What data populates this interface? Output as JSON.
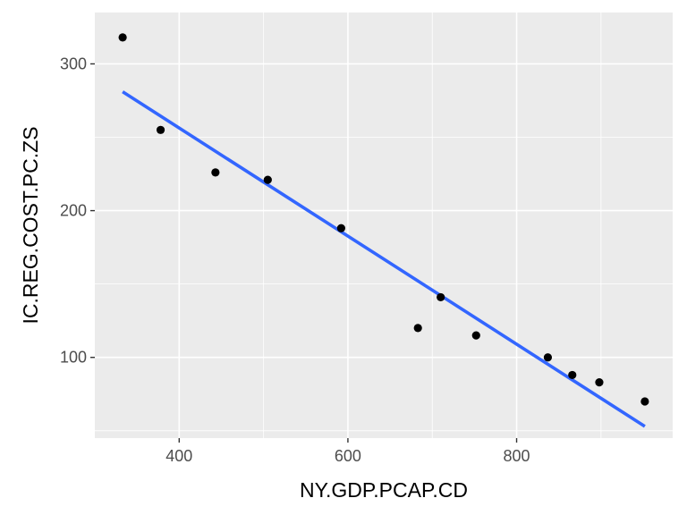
{
  "chart_data": {
    "type": "scatter",
    "title": "",
    "xlabel": "NY.GDP.PCAP.CD",
    "ylabel": "IC.REG.COST.PC.ZS",
    "xlim": [
      300,
      985
    ],
    "ylim": [
      45,
      335
    ],
    "x_ticks": [
      400,
      600,
      800
    ],
    "y_ticks": [
      100,
      200,
      300
    ],
    "x_tick_labels": [
      "400",
      "600",
      "800"
    ],
    "y_tick_labels": [
      "100",
      "200",
      "300"
    ],
    "grid": true,
    "legend": "none",
    "points": [
      {
        "x": 333,
        "y": 318
      },
      {
        "x": 378,
        "y": 255
      },
      {
        "x": 443,
        "y": 226
      },
      {
        "x": 505,
        "y": 221
      },
      {
        "x": 592,
        "y": 188
      },
      {
        "x": 683,
        "y": 120
      },
      {
        "x": 710,
        "y": 141
      },
      {
        "x": 752,
        "y": 115
      },
      {
        "x": 837,
        "y": 100
      },
      {
        "x": 866,
        "y": 88
      },
      {
        "x": 898,
        "y": 83
      },
      {
        "x": 952,
        "y": 70
      }
    ],
    "fit_line": {
      "x": [
        333,
        952
      ],
      "y": [
        281,
        53
      ]
    },
    "colors": {
      "panel_background": "#ebebeb",
      "grid_line": "#ffffff",
      "point": "#000000",
      "fit_line": "#3366ff",
      "tick_label": "#4d4d4d",
      "axis_title": "#000000"
    }
  }
}
